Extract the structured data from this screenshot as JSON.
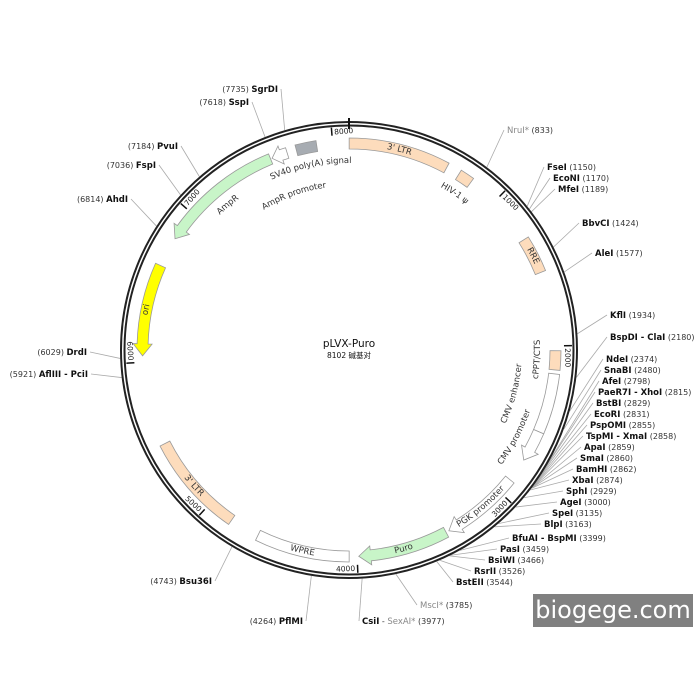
{
  "plasmid": {
    "name": "pLVX-Puro",
    "length_label": "8102 碱基对",
    "length_bp": 8102
  },
  "features": [
    {
      "name": "3' LTR",
      "start": 1,
      "end": 634,
      "color": "#fddcbc",
      "direction": "none",
      "label_pos": "on"
    },
    {
      "name": "HIV-1 ψ",
      "start": 720,
      "end": 810,
      "color": "#fddcbc",
      "direction": "none",
      "label_pos": "inner"
    },
    {
      "name": "RRE",
      "start": 1300,
      "end": 1530,
      "color": "#fddcbc",
      "direction": "none",
      "label_pos": "on"
    },
    {
      "name": "cPPT/CTS",
      "start": 2030,
      "end": 2150,
      "color": "#fddcbc",
      "direction": "none",
      "label_pos": "inner"
    },
    {
      "name": "CMV enhancer",
      "start": 2175,
      "end": 2550,
      "color": "#ffffff",
      "direction": "none",
      "label_pos": "inner2"
    },
    {
      "name": "CMV promoter",
      "start": 2550,
      "end": 2750,
      "color": "#ffffff",
      "direction": "forward",
      "label_pos": "inner"
    },
    {
      "name": "PGK promoter",
      "start": 2900,
      "end": 3400,
      "color": "#ffffff",
      "direction": "forward",
      "label_pos": "on"
    },
    {
      "name": "Puro",
      "start": 3420,
      "end": 3990,
      "color": "#c8f5c8",
      "direction": "forward",
      "label_pos": "on"
    },
    {
      "name": "WPRE",
      "start": 4050,
      "end": 4640,
      "color": "#ffffff",
      "direction": "none",
      "label_pos": "on"
    },
    {
      "name": "3' LTR",
      "start": 4830,
      "end": 5470,
      "color": "#fddcbc",
      "direction": "none",
      "label_pos": "on"
    },
    {
      "name": "ori",
      "start": 6040,
      "end": 6620,
      "color": "#ffff00",
      "direction": "reverse",
      "label_pos": "on"
    },
    {
      "name": "AmpR",
      "start": 6810,
      "end": 7600,
      "color": "#c8f5c8",
      "direction": "reverse",
      "label_pos": "inner"
    },
    {
      "name": "AmpR promoter",
      "start": 7610,
      "end": 7710,
      "color": "#ffffff",
      "direction": "reverse",
      "label_pos": "inner"
    },
    {
      "name": "SV40 poly(A) signal",
      "start": 7770,
      "end": 7900,
      "color": "#a7acb2",
      "direction": "none",
      "label_pos": "inner"
    }
  ],
  "ticks": [
    "1000",
    "2000",
    "3000",
    "4000",
    "5000",
    "6000",
    "7000",
    "8000"
  ],
  "sites": [
    {
      "name": "NruI*",
      "pos": "833",
      "muted": true
    },
    {
      "name": "FseI",
      "pos": "1150"
    },
    {
      "name": "EcoNI",
      "pos": "1170"
    },
    {
      "name": "MfeI",
      "pos": "1189"
    },
    {
      "name": "BbvCI",
      "pos": "1424"
    },
    {
      "name": "AleI",
      "pos": "1577"
    },
    {
      "name": "KflI",
      "pos": "1934"
    },
    {
      "name": "BspDI - ClaI",
      "pos": "2180"
    },
    {
      "name": "NdeI",
      "pos": "2374"
    },
    {
      "name": "SnaBI",
      "pos": "2480"
    },
    {
      "name": "AfeI",
      "pos": "2798"
    },
    {
      "name": "PaeR7I - XhoI",
      "pos": "2815"
    },
    {
      "name": "BstBI",
      "pos": "2829"
    },
    {
      "name": "EcoRI",
      "pos": "2831"
    },
    {
      "name": "PspOMI",
      "pos": "2855"
    },
    {
      "name": "TspMI - XmaI",
      "pos": "2858"
    },
    {
      "name": "ApaI",
      "pos": "2859"
    },
    {
      "name": "SmaI",
      "pos": "2860"
    },
    {
      "name": "BamHI",
      "pos": "2862"
    },
    {
      "name": "XbaI",
      "pos": "2874"
    },
    {
      "name": "SphI",
      "pos": "2929"
    },
    {
      "name": "AgeI",
      "pos": "3000"
    },
    {
      "name": "SpeI",
      "pos": "3135"
    },
    {
      "name": "BlpI",
      "pos": "3163"
    },
    {
      "name": "BfuAI - BspMI",
      "pos": "3399"
    },
    {
      "name": "PasI",
      "pos": "3459"
    },
    {
      "name": "BsiWI",
      "pos": "3466"
    },
    {
      "name": "RsrII",
      "pos": "3526"
    },
    {
      "name": "BstEII",
      "pos": "3544"
    },
    {
      "name": "MscI*",
      "pos": "3785",
      "muted": true
    },
    {
      "name": "CsiI",
      "name2": "SexAI*",
      "pos": "3977"
    },
    {
      "name": "PflMI",
      "pos": "4264"
    },
    {
      "name": "Bsu36I",
      "pos": "4743"
    },
    {
      "name": "AflIII - PciI",
      "pos": "5921"
    },
    {
      "name": "DrdI",
      "pos": "6029"
    },
    {
      "name": "AhdI",
      "pos": "6814"
    },
    {
      "name": "FspI",
      "pos": "7036"
    },
    {
      "name": "PvuI",
      "pos": "7184"
    },
    {
      "name": "SspI",
      "pos": "7618"
    },
    {
      "name": "SgrDI",
      "pos": "7735"
    }
  ],
  "watermark": "biogege.com"
}
